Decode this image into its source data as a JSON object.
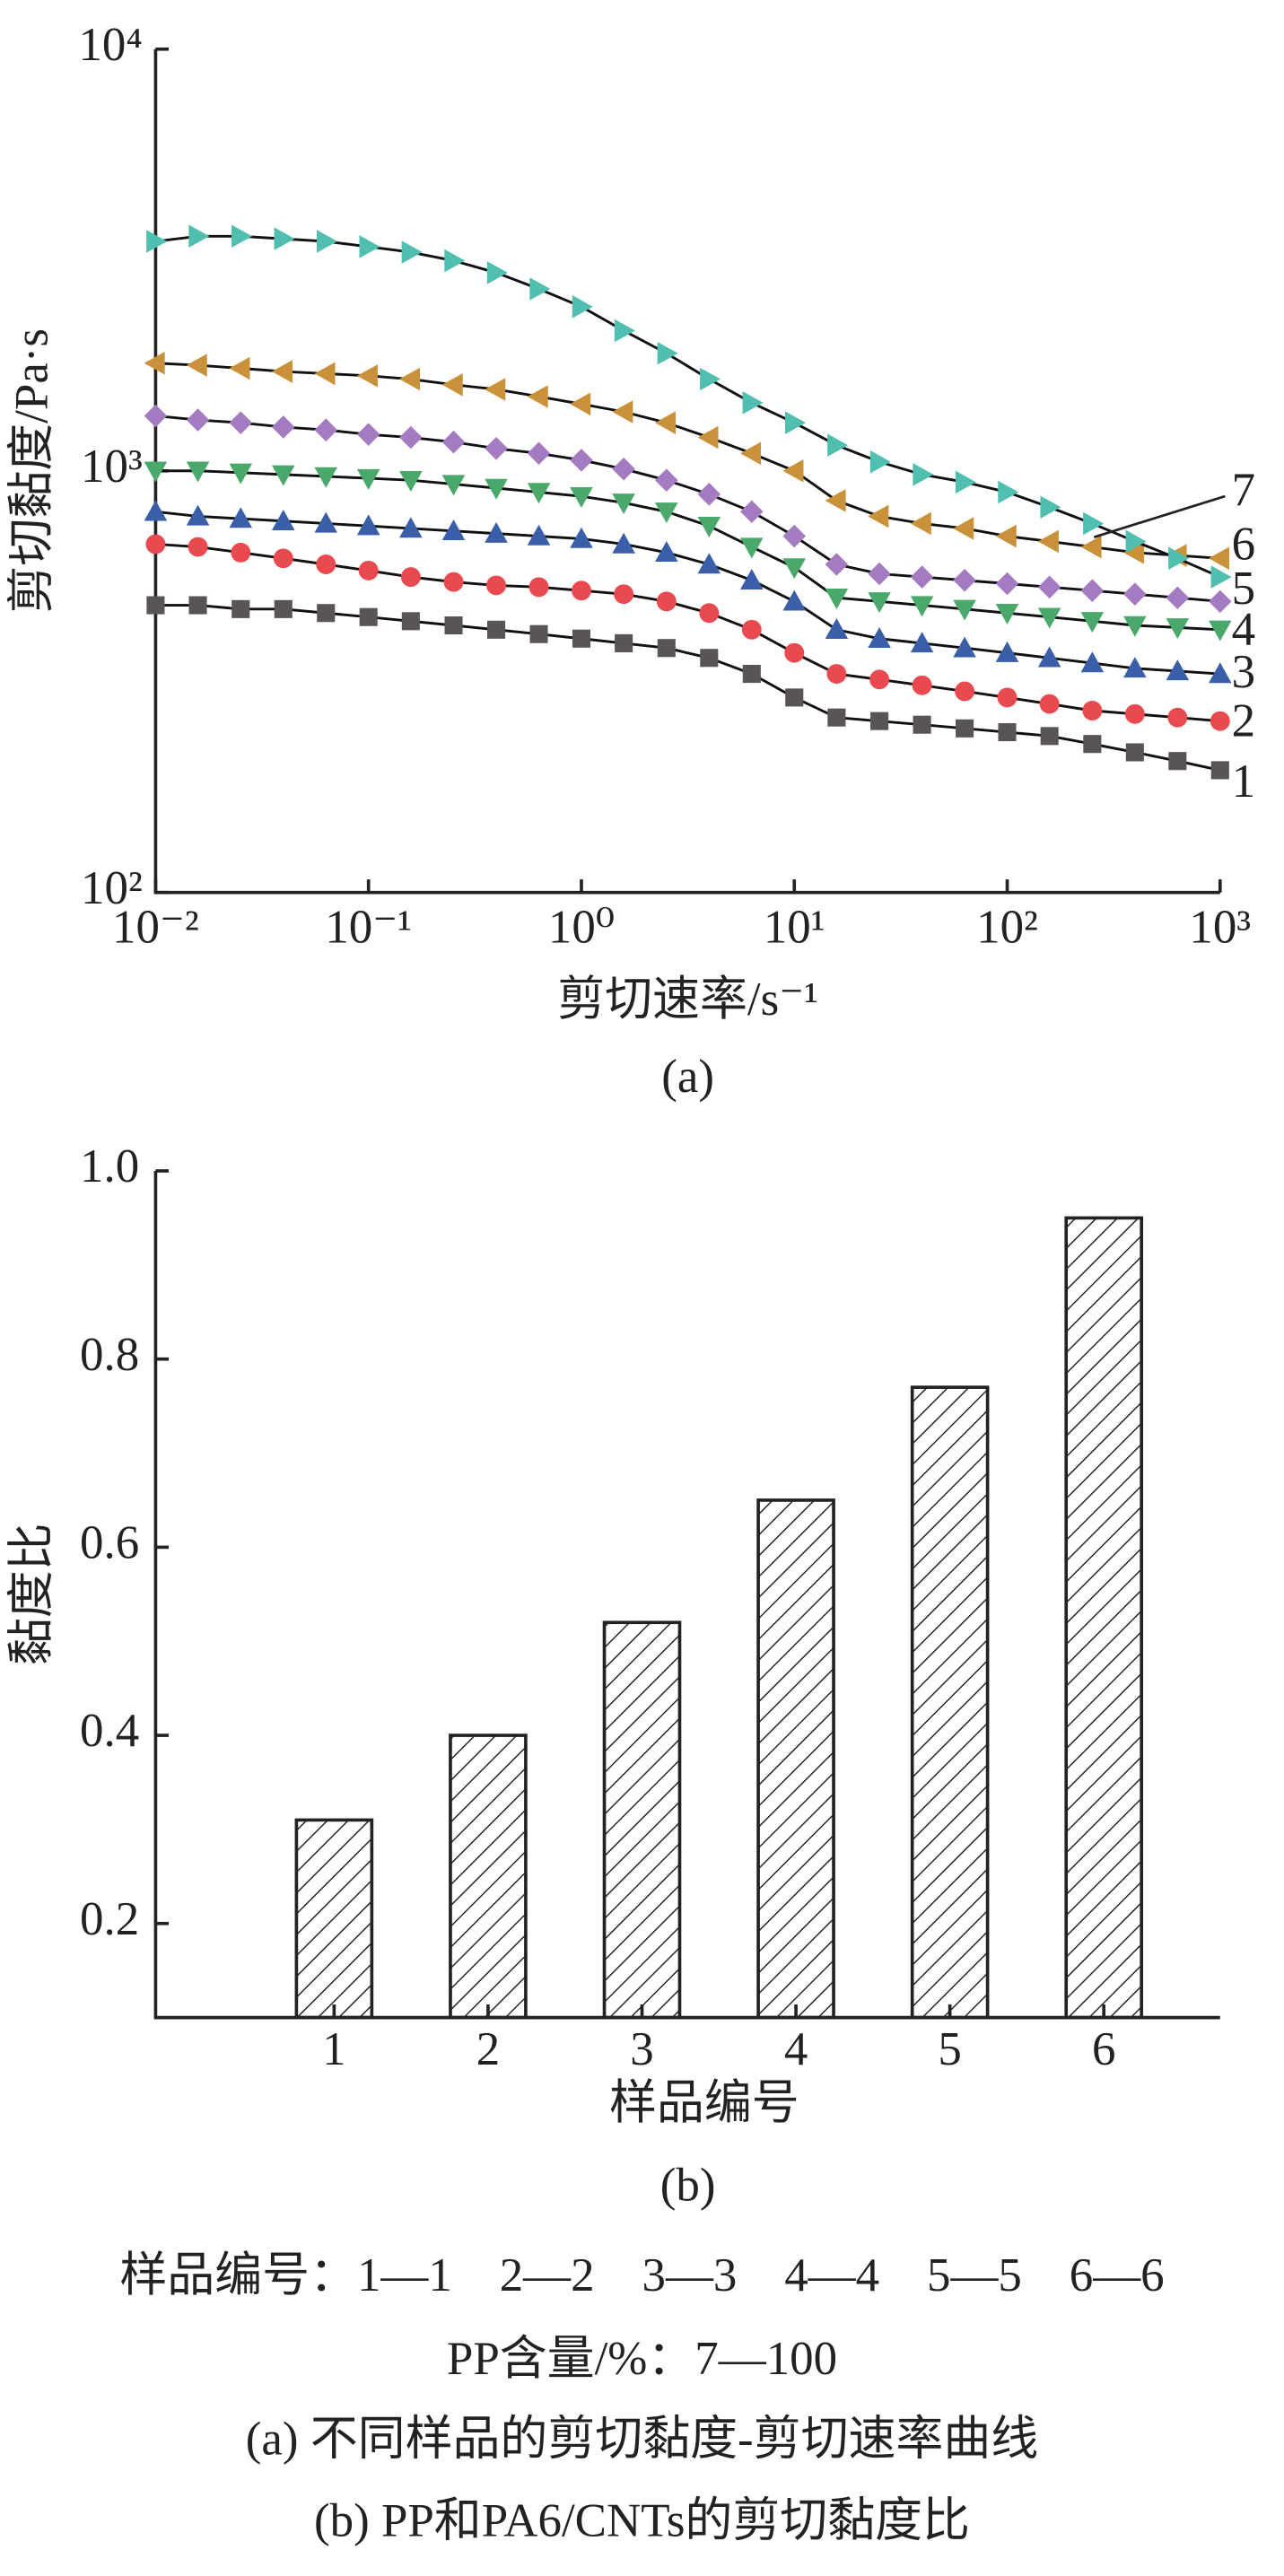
{
  "chart_data": [
    {
      "type": "line",
      "xlabel": "剪切速率/s⁻¹",
      "ylabel": "剪切黏度/Pa·s",
      "caption": "(a)",
      "xscale": "log",
      "yscale": "log",
      "xlim": [
        0.01,
        1000
      ],
      "ylim": [
        100,
        10000
      ],
      "xticks": [
        {
          "value": 0.01,
          "label": "10⁻²"
        },
        {
          "value": 0.1,
          "label": "10⁻¹"
        },
        {
          "value": 1,
          "label": "10⁰"
        },
        {
          "value": 10,
          "label": "10¹"
        },
        {
          "value": 100,
          "label": "10²"
        },
        {
          "value": 1000,
          "label": "10³"
        }
      ],
      "yticks": [
        {
          "value": 100,
          "label": "10²"
        },
        {
          "value": 1000,
          "label": "10³"
        },
        {
          "value": 10000,
          "label": "10⁴"
        }
      ],
      "x": [
        0.01,
        0.0158,
        0.0251,
        0.0398,
        0.0631,
        0.1,
        0.158,
        0.251,
        0.398,
        0.631,
        1,
        1.58,
        2.51,
        3.98,
        6.31,
        10,
        15.8,
        25.1,
        39.8,
        63.1,
        100,
        158,
        251,
        398,
        631,
        1000
      ],
      "series": [
        {
          "name": "1",
          "color": "#5a5555",
          "marker": "square",
          "values": [
            480,
            480,
            470,
            470,
            460,
            450,
            440,
            430,
            420,
            410,
            400,
            390,
            380,
            360,
            330,
            290,
            260,
            255,
            250,
            245,
            240,
            235,
            225,
            215,
            205,
            195
          ]
        },
        {
          "name": "2",
          "color": "#e84a50",
          "marker": "circle",
          "values": [
            670,
            660,
            640,
            620,
            600,
            580,
            560,
            545,
            535,
            530,
            520,
            510,
            490,
            460,
            420,
            370,
            330,
            320,
            310,
            300,
            290,
            280,
            270,
            265,
            260,
            255
          ]
        },
        {
          "name": "3",
          "color": "#3a5ea8",
          "marker": "triangle-up",
          "values": [
            800,
            780,
            770,
            760,
            750,
            740,
            730,
            720,
            710,
            700,
            690,
            670,
            640,
            600,
            550,
            490,
            420,
            400,
            390,
            380,
            370,
            360,
            350,
            340,
            335,
            330
          ]
        },
        {
          "name": "4",
          "color": "#4aa86a",
          "marker": "triangle-down",
          "values": [
            1000,
            1000,
            990,
            980,
            970,
            960,
            950,
            930,
            910,
            890,
            870,
            840,
            800,
            740,
            660,
            590,
            500,
            490,
            480,
            470,
            460,
            450,
            440,
            430,
            425,
            420
          ]
        },
        {
          "name": "5",
          "color": "#a47bc0",
          "marker": "diamond",
          "values": [
            1350,
            1320,
            1300,
            1270,
            1250,
            1220,
            1200,
            1170,
            1130,
            1100,
            1060,
            1010,
            950,
            880,
            800,
            700,
            600,
            570,
            560,
            550,
            540,
            530,
            520,
            510,
            500,
            490
          ]
        },
        {
          "name": "6",
          "color": "#c8913a",
          "marker": "triangle-left",
          "values": [
            1800,
            1780,
            1750,
            1720,
            1700,
            1680,
            1650,
            1600,
            1560,
            1500,
            1440,
            1380,
            1300,
            1200,
            1100,
            1000,
            850,
            780,
            750,
            730,
            700,
            680,
            660,
            640,
            630,
            620
          ]
        },
        {
          "name": "7",
          "color": "#50bfb0",
          "marker": "triangle-right",
          "values": [
            3500,
            3600,
            3600,
            3550,
            3500,
            3400,
            3300,
            3150,
            2950,
            2700,
            2450,
            2150,
            1900,
            1650,
            1450,
            1300,
            1150,
            1050,
            980,
            940,
            890,
            820,
            750,
            680,
            620,
            560
          ]
        }
      ]
    },
    {
      "type": "bar",
      "xlabel": "样品编号",
      "ylabel": "黏度比",
      "caption": "(b)",
      "categories": [
        "1",
        "2",
        "3",
        "4",
        "5",
        "6"
      ],
      "values": [
        0.31,
        0.4,
        0.52,
        0.65,
        0.77,
        0.95
      ],
      "ylim": [
        0.1,
        1.0
      ],
      "yticks": [
        {
          "value": 0.2,
          "label": "0.2"
        },
        {
          "value": 0.4,
          "label": "0.4"
        },
        {
          "value": 0.6,
          "label": "0.6"
        },
        {
          "value": 0.8,
          "label": "0.8"
        },
        {
          "value": 1.0,
          "label": "1.0"
        }
      ],
      "pattern": "hatch",
      "color": "#222222"
    }
  ],
  "notes": [
    "样品编号：1—1　2—2　3—3　4—4　5—5　6—6",
    "PP含量/%：7—100",
    "(a) 不同样品的剪切黏度-剪切速率曲线",
    "(b) PP和PA6/CNTs的剪切黏度比"
  ]
}
